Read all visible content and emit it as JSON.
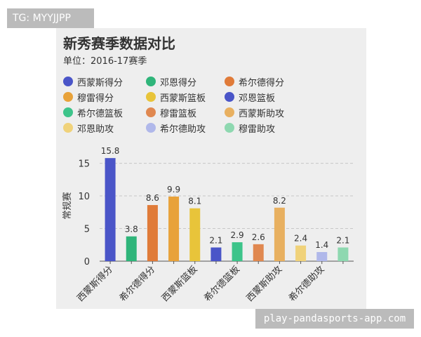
{
  "title": "新秀赛季数据对比",
  "subtitle": "单位：2016-17赛季",
  "watermark_top": "TG: MYYJJPP",
  "watermark_bottom": "play-pandasports-app.com",
  "chart_data": {
    "type": "bar",
    "categories": [
      "西蒙斯得分",
      "邓恩得分",
      "希尔德得分",
      "穆雷得分",
      "西蒙斯篮板",
      "邓恩篮板",
      "希尔德篮板",
      "穆雷篮板",
      "西蒙斯助攻",
      "邓恩助攻",
      "希尔德助攻",
      "穆雷助攻"
    ],
    "values": [
      15.8,
      3.8,
      8.6,
      9.9,
      8.1,
      2.1,
      2.9,
      2.6,
      8.2,
      2.4,
      1.4,
      2.1
    ],
    "value_labels": [
      "15.8",
      "3.8",
      "8.6",
      "9.9",
      "8.1",
      "2.1",
      "2.9",
      "2.6",
      "8.2",
      "2.4",
      "1.4",
      "2.1"
    ],
    "colors": [
      "#4a55c8",
      "#2fb57a",
      "#e07b39",
      "#e8a23a",
      "#e8c43a",
      "#4a55c8",
      "#3dc48a",
      "#e08850",
      "#e8b060",
      "#f0d27a",
      "#b0b8ea",
      "#8ed8b0"
    ],
    "xtick_labels": [
      "西蒙斯得分",
      "希尔德得分",
      "西蒙斯篮板",
      "希尔德篮板",
      "西蒙斯助攻",
      "希尔德助攻"
    ],
    "ylabel": "常规赛",
    "xlabel": "",
    "ylim": [
      0,
      17
    ],
    "yticks": [
      0,
      5,
      10,
      15
    ],
    "grid": true,
    "legend": {
      "placement": "top-left",
      "entries": [
        "西蒙斯得分",
        "邓恩得分",
        "希尔德得分",
        "穆雷得分",
        "西蒙斯篮板",
        "邓恩篮板",
        "希尔德篮板",
        "穆雷篮板",
        "西蒙斯助攻",
        "邓恩助攻",
        "希尔德助攻",
        "穆雷助攻"
      ]
    }
  }
}
